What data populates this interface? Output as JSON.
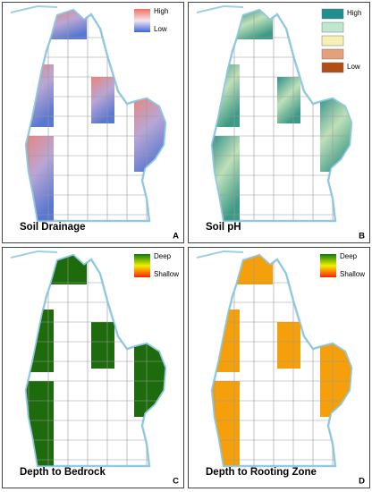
{
  "panels": [
    {
      "title": "Soil Drainage",
      "letter": "A",
      "legend": [
        "High",
        "Low"
      ]
    },
    {
      "title": "Soil pH",
      "letter": "B",
      "legend": [
        "High",
        "Low"
      ]
    },
    {
      "title": "Depth to Bedrock",
      "letter": "C",
      "legend": [
        "Deep",
        "Shallow"
      ]
    },
    {
      "title": "Depth to Rooting Zone",
      "letter": "D",
      "legend": [
        "Deep",
        "Shallow"
      ]
    }
  ]
}
